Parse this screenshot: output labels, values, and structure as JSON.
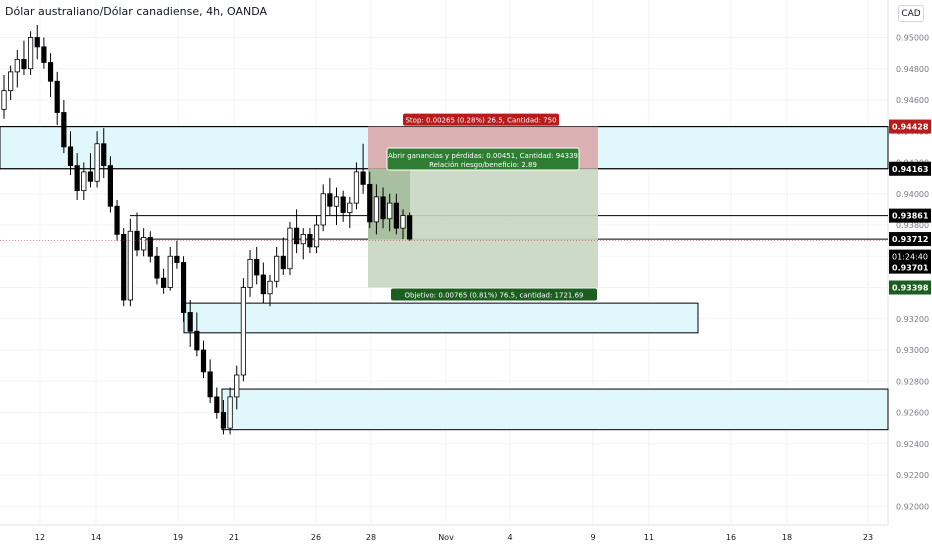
{
  "header": {
    "title": "Dólar australiano/Dólar canadiense, 4h, OANDA",
    "currency": "CAD"
  },
  "colors": {
    "bull": "#ffffff",
    "bear": "#000000",
    "zone": "#e0f8fc",
    "zone_border": "#000000",
    "stop_fill": "#d9a3a6",
    "target_fill": "#a4bc9b",
    "stop_label": "#b71c1c",
    "target_label": "#1b5e20",
    "grid": "#f0f3fa"
  },
  "chart_data": {
    "type": "candlestick",
    "title": "Dólar australiano/Dólar canadiense, 4h, OANDA",
    "ylim": [
      0.9188,
      0.9524
    ],
    "y_ticks": [
      "0.95000",
      "0.94800",
      "0.94600",
      "0.94400",
      "0.94200",
      "0.94000",
      "0.93800",
      "0.93600",
      "0.93400",
      "0.93200",
      "0.93000",
      "0.92800",
      "0.92600",
      "0.92400",
      "0.92200",
      "0.92000"
    ],
    "x_ticks": [
      "12",
      "14",
      "19",
      "21",
      "26",
      "28",
      "Nov",
      "4",
      "9",
      "11",
      "16",
      "18",
      "23"
    ],
    "candles": [
      [
        0.9454,
        0.9476,
        0.9448,
        0.9466
      ],
      [
        0.9466,
        0.9482,
        0.946,
        0.9478
      ],
      [
        0.9478,
        0.9492,
        0.9468,
        0.9486
      ],
      [
        0.9486,
        0.9498,
        0.9476,
        0.948
      ],
      [
        0.948,
        0.9504,
        0.9476,
        0.95
      ],
      [
        0.95,
        0.9508,
        0.9486,
        0.9494
      ],
      [
        0.9494,
        0.95,
        0.948,
        0.9484
      ],
      [
        0.9484,
        0.949,
        0.9462,
        0.9472
      ],
      [
        0.9472,
        0.9478,
        0.9444,
        0.9452
      ],
      [
        0.9452,
        0.946,
        0.9426,
        0.943
      ],
      [
        0.943,
        0.944,
        0.9412,
        0.9418
      ],
      [
        0.9418,
        0.9426,
        0.9396,
        0.9402
      ],
      [
        0.9402,
        0.942,
        0.9396,
        0.9414
      ],
      [
        0.9414,
        0.9426,
        0.9404,
        0.9408
      ],
      [
        0.9408,
        0.944,
        0.9404,
        0.9432
      ],
      [
        0.9432,
        0.9442,
        0.941,
        0.9418
      ],
      [
        0.9418,
        0.9424,
        0.9388,
        0.9392
      ],
      [
        0.9392,
        0.9396,
        0.937,
        0.9374
      ],
      [
        0.9374,
        0.9378,
        0.9328,
        0.9332
      ],
      [
        0.9332,
        0.9384,
        0.9328,
        0.9376
      ],
      [
        0.9376,
        0.9388,
        0.936,
        0.9364
      ],
      [
        0.9364,
        0.9378,
        0.936,
        0.9372
      ],
      [
        0.9372,
        0.9376,
        0.9356,
        0.936
      ],
      [
        0.936,
        0.9366,
        0.9342,
        0.9346
      ],
      [
        0.9346,
        0.9352,
        0.9336,
        0.934
      ],
      [
        0.934,
        0.9366,
        0.9338,
        0.936
      ],
      [
        0.936,
        0.937,
        0.9352,
        0.9356
      ],
      [
        0.9356,
        0.936,
        0.9318,
        0.9324
      ],
      [
        0.9324,
        0.9332,
        0.9302,
        0.9312
      ],
      [
        0.9312,
        0.9324,
        0.9296,
        0.93
      ],
      [
        0.93,
        0.9306,
        0.9282,
        0.9286
      ],
      [
        0.9286,
        0.9294,
        0.9266,
        0.927
      ],
      [
        0.927,
        0.9276,
        0.9256,
        0.926
      ],
      [
        0.926,
        0.9268,
        0.9246,
        0.925
      ],
      [
        0.925,
        0.9276,
        0.9246,
        0.927
      ],
      [
        0.927,
        0.929,
        0.9262,
        0.9284
      ],
      [
        0.9284,
        0.9346,
        0.928,
        0.934
      ],
      [
        0.934,
        0.9364,
        0.9334,
        0.9358
      ],
      [
        0.9358,
        0.9366,
        0.9342,
        0.9348
      ],
      [
        0.9348,
        0.9356,
        0.933,
        0.9336
      ],
      [
        0.9336,
        0.9348,
        0.9328,
        0.9344
      ],
      [
        0.9344,
        0.9366,
        0.934,
        0.936
      ],
      [
        0.936,
        0.9372,
        0.9348,
        0.9352
      ],
      [
        0.9352,
        0.9382,
        0.9348,
        0.9378
      ],
      [
        0.9378,
        0.939,
        0.9362,
        0.9368
      ],
      [
        0.9368,
        0.9378,
        0.9358,
        0.9374
      ],
      [
        0.9374,
        0.9378,
        0.9362,
        0.9366
      ],
      [
        0.9366,
        0.9386,
        0.9362,
        0.938
      ],
      [
        0.938,
        0.9406,
        0.9376,
        0.94
      ],
      [
        0.94,
        0.941,
        0.9386,
        0.9392
      ],
      [
        0.9392,
        0.9404,
        0.938,
        0.9398
      ],
      [
        0.9398,
        0.9402,
        0.9382,
        0.9388
      ],
      [
        0.9388,
        0.9398,
        0.9378,
        0.9394
      ],
      [
        0.9394,
        0.942,
        0.939,
        0.9414
      ],
      [
        0.9414,
        0.9432,
        0.94,
        0.9406
      ],
      [
        0.9406,
        0.9414,
        0.9378,
        0.9382
      ],
      [
        0.9382,
        0.9406,
        0.9374,
        0.9398
      ],
      [
        0.9398,
        0.9404,
        0.9378,
        0.9384
      ],
      [
        0.9384,
        0.94,
        0.9376,
        0.9394
      ],
      [
        0.9394,
        0.94,
        0.9374,
        0.9378
      ],
      [
        0.9378,
        0.939,
        0.9371,
        0.9386
      ],
      [
        0.9386,
        0.9388,
        0.937,
        0.9371
      ]
    ],
    "levels": [
      {
        "value": 0.9443,
        "label": "0.94428",
        "style": "line"
      },
      {
        "value": 0.9416,
        "label": "0.94163",
        "style": "line"
      },
      {
        "value": 0.9386,
        "label": "0.93861",
        "style": "line"
      },
      {
        "value": 0.9371,
        "label": "0.93712",
        "style": "line"
      },
      {
        "value": 0.937,
        "label": "0.93701",
        "style": "price"
      },
      {
        "value": 0.934,
        "label": "0.93398",
        "style": "target"
      }
    ],
    "countdown": "01:24:40",
    "zones": [
      {
        "top": 0.9443,
        "bottom": 0.9416,
        "extends": true
      },
      {
        "top": 0.933,
        "bottom": 0.9311,
        "extends": false
      },
      {
        "top": 0.9275,
        "bottom": 0.9249,
        "extends": true
      }
    ],
    "position": {
      "entry": 0.9416,
      "stop": 0.9443,
      "target": 0.934,
      "stop_label": "Stop: 0.00265 (0.28%) 26.5, Cantidad: 750",
      "target_label": "Objetivo: 0.00765 (0.81%) 76.5, cantidad: 1721.69",
      "pnl_label": "Abrir ganancias y pérdidas: 0.00451, Cantidad: 94339",
      "rr_label": "Relación riesgo/beneficio: 2.89"
    }
  }
}
